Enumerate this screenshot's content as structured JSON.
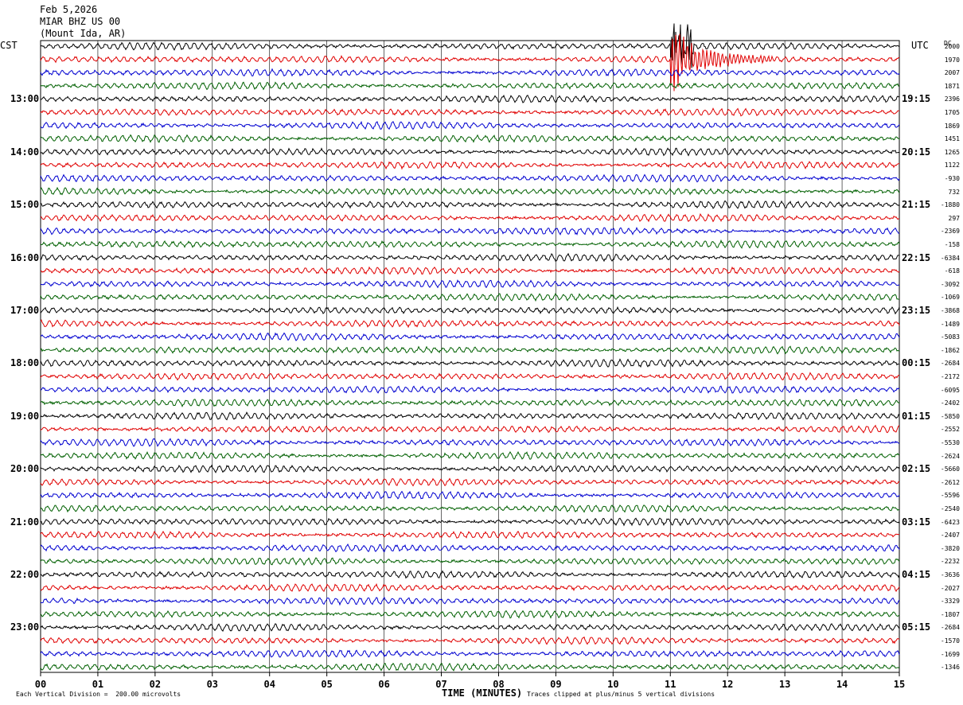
{
  "header": {
    "date": "Feb 5,2026",
    "station": "MIAR BHZ US 00",
    "location": "(Mount Ida, AR)"
  },
  "labels": {
    "left_zone": "CST",
    "right_zone": "UTC",
    "dc": "DC",
    "xlabel": "TIME (MINUTES)",
    "scale_note": "Each Vertical Division =  200.00 microvolts",
    "clip_note": "Traces clipped at plus/minus 5 vertical divisions"
  },
  "colors": {
    "trace_cycle": [
      "#000000",
      "#e00000",
      "#0000d0",
      "#006000"
    ],
    "grid": "#000000"
  },
  "chart_data": {
    "type": "line",
    "title": "",
    "x_ticks": [
      "00",
      "01",
      "02",
      "03",
      "04",
      "05",
      "06",
      "07",
      "08",
      "09",
      "10",
      "11",
      "12",
      "13",
      "14",
      "15"
    ],
    "xlim": [
      0,
      15
    ],
    "rows": 48,
    "minutes_per_row": 15,
    "left_hour_labels": [
      "13:00",
      "14:00",
      "15:00",
      "16:00",
      "17:00",
      "18:00",
      "19:00",
      "20:00",
      "21:00",
      "22:00",
      "23:00"
    ],
    "right_hour_labels": [
      "19:15",
      "20:15",
      "21:15",
      "22:15",
      "23:15",
      "00:15",
      "01:15",
      "02:15",
      "03:15",
      "04:15",
      "05:15"
    ],
    "dc_offsets": [
      "2000",
      "1970",
      "2007",
      "1871",
      "2396",
      "1705",
      "1869",
      "1451",
      "1265",
      "1122",
      "-930",
      "732",
      "-1880",
      "297",
      "-2369",
      "-158",
      "-6384",
      "-618",
      "-3092",
      "-1069",
      "-3868",
      "-1489",
      "-5083",
      "-1862",
      "-2684",
      "-2172",
      "-6095",
      "-2402",
      "-5850",
      "-2552",
      "-5530",
      "-2624",
      "-5660",
      "-2612",
      "-5596",
      "-2540",
      "-6423",
      "-2407",
      "-3820",
      "-2232",
      "-3636",
      "-2027",
      "-3329",
      "-1807",
      "-2684",
      "-1570",
      "-1699",
      "-1346"
    ],
    "events": [
      {
        "row": 1,
        "start_minute": 11.0,
        "end_minute": 12.8,
        "label": ""
      }
    ]
  }
}
